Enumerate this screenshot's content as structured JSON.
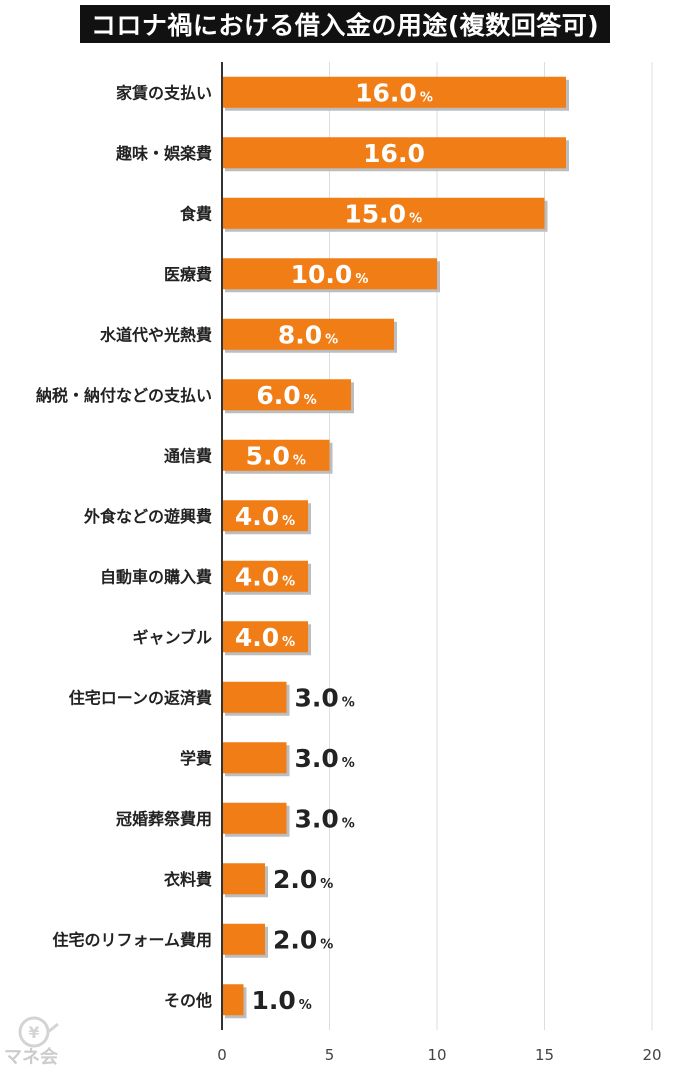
{
  "chart_data": {
    "type": "bar",
    "orientation": "horizontal",
    "title": "コロナ禍における借入金の用途(複数回答可)",
    "categories": [
      "家賃の支払い",
      "趣味・娯楽費",
      "食費",
      "医療費",
      "水道代や光熱費",
      "納税・納付などの支払い",
      "通信費",
      "外食などの遊興費",
      "自動車の購入費",
      "ギャンブル",
      "住宅ローンの返済費",
      "学費",
      "冠婚葬祭費用",
      "衣料費",
      "住宅のリフォーム費用",
      "その他"
    ],
    "values": [
      16.0,
      16.0,
      15.0,
      10.0,
      8.0,
      6.0,
      5.0,
      4.0,
      4.0,
      4.0,
      3.0,
      3.0,
      3.0,
      2.0,
      2.0,
      1.0
    ],
    "value_labels": [
      "16.0",
      "16.0",
      "15.0",
      "10.0",
      "8.0",
      "6.0",
      "5.0",
      "4.0",
      "4.0",
      "4.0",
      "3.0",
      "3.0",
      "3.0",
      "2.0",
      "2.0",
      "1.0"
    ],
    "unit_shown": [
      true,
      false,
      true,
      true,
      true,
      true,
      true,
      true,
      true,
      true,
      true,
      true,
      true,
      true,
      true,
      true
    ],
    "unit": "%",
    "xlim": [
      0,
      20
    ],
    "xticks": [
      0,
      5,
      10,
      15,
      20
    ],
    "grid": "vertical",
    "bar_color": "#f07d16",
    "shadow_color": "#bdbdbd",
    "gridline_color": "#dddddd",
    "axis_color": "#333333",
    "label_inside_color": "#ffffff",
    "label_outside_color": "#222222"
  },
  "watermark": {
    "text": "マネ会",
    "symbol": "¥"
  }
}
